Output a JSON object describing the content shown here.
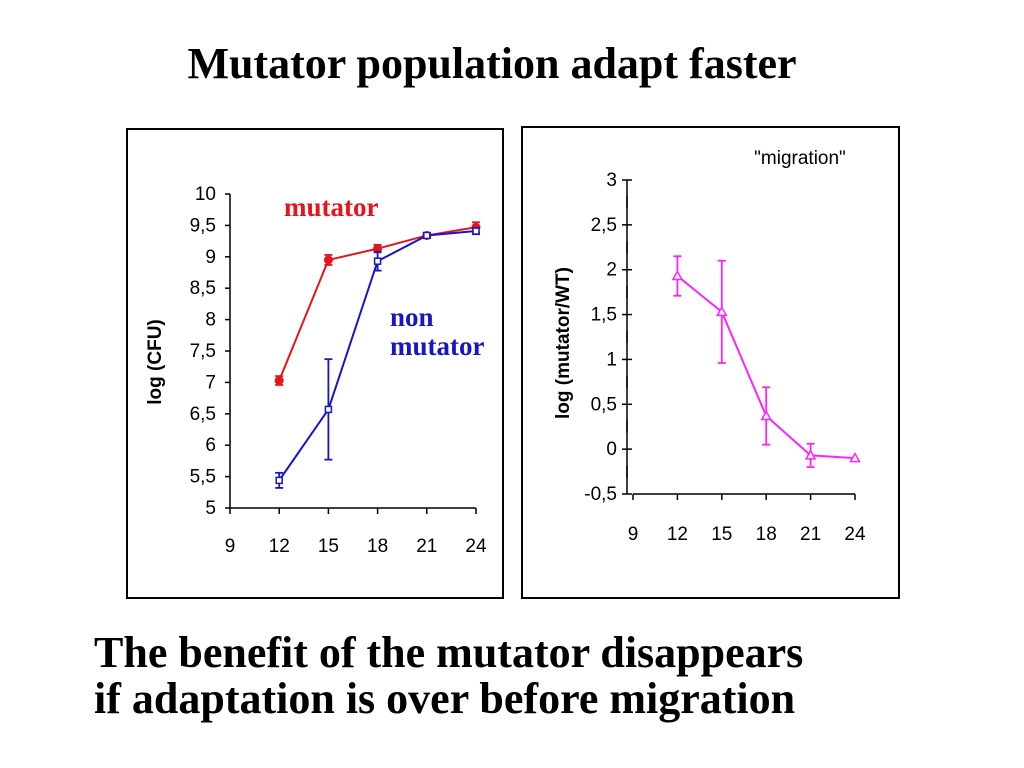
{
  "slide": {
    "title": "Mutator population adapt faster",
    "footer_line1": "The benefit of the mutator disappears",
    "footer_line2": "if adaptation is over before migration"
  },
  "chart_data": [
    {
      "type": "line",
      "title": "",
      "xlabel": "",
      "ylabel": "log (CFU)",
      "xlim": [
        9,
        24
      ],
      "ylim": [
        5,
        10
      ],
      "x_ticks": [
        "9",
        "12",
        "15",
        "18",
        "21",
        "24"
      ],
      "y_ticks": [
        "5",
        "5,5",
        "6",
        "6,5",
        "7",
        "7,5",
        "8",
        "8,5",
        "9",
        "9,5",
        "10"
      ],
      "grid": false,
      "series": [
        {
          "name": "mutator",
          "label_lines": [
            "mutator"
          ],
          "color": "#e8141a",
          "marker": "filled-circle",
          "x": [
            12,
            15,
            18,
            21,
            24
          ],
          "y": [
            7.03,
            8.95,
            9.13,
            9.34,
            9.47
          ],
          "err": [
            0.07,
            0.08,
            0.06,
            0.04,
            0.08
          ]
        },
        {
          "name": "non mutator",
          "label_lines": [
            "non",
            "mutator"
          ],
          "color": "#1616c8",
          "marker": "open-square",
          "x": [
            12,
            15,
            18,
            21,
            24
          ],
          "y": [
            5.44,
            6.57,
            8.93,
            9.34,
            9.41
          ],
          "err": [
            0.12,
            0.8,
            0.15,
            0.04,
            0.05
          ]
        }
      ]
    },
    {
      "type": "line",
      "title": "\"migration\"",
      "xlabel": "",
      "ylabel": "log (mutator/WT)",
      "xlim": [
        9,
        24
      ],
      "ylim": [
        -0.5,
        3
      ],
      "x_ticks": [
        "9",
        "12",
        "15",
        "18",
        "21",
        "24"
      ],
      "y_ticks": [
        "-0,5",
        "0",
        "0,5",
        "1",
        "1,5",
        "2",
        "2,5",
        "3"
      ],
      "grid": false,
      "series": [
        {
          "name": "",
          "color": "#ff22ff",
          "marker": "open-triangle",
          "x": [
            12,
            15,
            18,
            21,
            24
          ],
          "y": [
            1.93,
            1.53,
            0.37,
            -0.07,
            -0.1
          ],
          "err": [
            0.22,
            0.57,
            0.32,
            0.13,
            0.0
          ]
        }
      ]
    }
  ]
}
